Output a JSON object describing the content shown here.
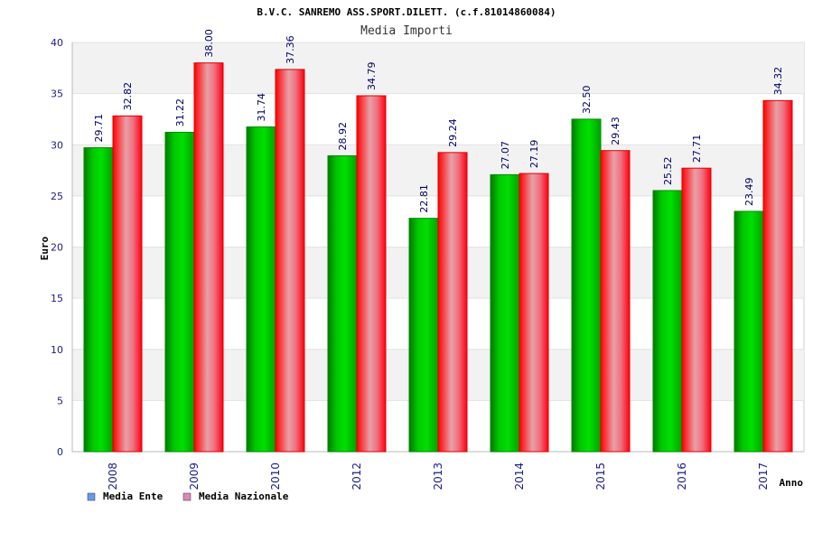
{
  "chart_data": {
    "type": "bar",
    "title": "B.V.C. SANREMO ASS.SPORT.DILETT. (c.f.81014860084)",
    "subtitle": "Media Importi",
    "xlabel": "Anno",
    "ylabel": "Euro",
    "ylim": [
      0,
      40
    ],
    "yticks": [
      0,
      5,
      10,
      15,
      20,
      25,
      30,
      35,
      40
    ],
    "categories": [
      "2008",
      "2009",
      "2010",
      "2012",
      "2013",
      "2014",
      "2015",
      "2016",
      "2017"
    ],
    "series": [
      {
        "name": "Media Ente",
        "values": [
          29.71,
          31.22,
          31.74,
          28.92,
          22.81,
          27.07,
          32.5,
          25.52,
          23.49
        ],
        "labels": [
          "29.71",
          "31.22",
          "31.74",
          "28.92",
          "22.81",
          "27.07",
          "32.50",
          "25.52",
          "23.49"
        ],
        "color": "#00aa00",
        "legend_color": "#6699ee"
      },
      {
        "name": "Media Nazionale",
        "values": [
          32.82,
          38.0,
          37.36,
          34.79,
          29.24,
          27.19,
          29.43,
          27.71,
          34.32
        ],
        "labels": [
          "32.82",
          "38.00",
          "37.36",
          "34.79",
          "29.24",
          "27.19",
          "29.43",
          "27.71",
          "34.32"
        ],
        "color": "#ee1122",
        "legend_color": "#dd88bb"
      }
    ],
    "grid": true,
    "legend_position": "bottom-left"
  }
}
